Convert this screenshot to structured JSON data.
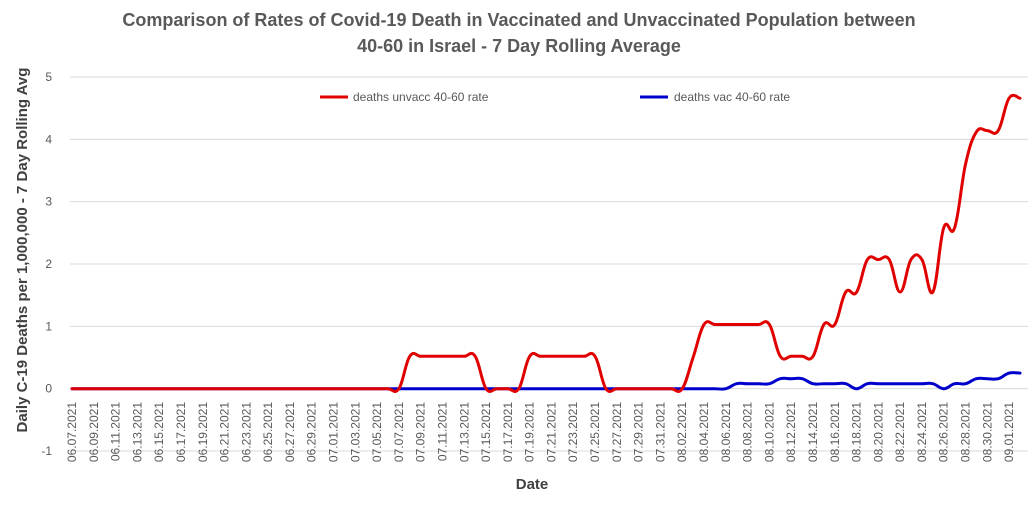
{
  "chart_data": {
    "type": "line",
    "title_lines": [
      "Comparison of Rates of Covid-19 Death in Vaccinated and Unvaccinated Population between",
      "40-60 in Israel - 7 Day Rolling Average"
    ],
    "xlabel": "Date",
    "ylabel": "Daily C-19 Deaths per 1,000,000 - 7 Day Rolling Avg",
    "ylim": [
      -1,
      5
    ],
    "yticks": [
      -1,
      0,
      1,
      2,
      3,
      4,
      5
    ],
    "grid": "horizontal",
    "legend_position": "top",
    "x": [
      "06.07.2021",
      "06.08.2021",
      "06.09.2021",
      "06.10.2021",
      "06.11.2021",
      "06.12.2021",
      "06.13.2021",
      "06.14.2021",
      "06.15.2021",
      "06.16.2021",
      "06.17.2021",
      "06.18.2021",
      "06.19.2021",
      "06.20.2021",
      "06.21.2021",
      "06.22.2021",
      "06.23.2021",
      "06.24.2021",
      "06.25.2021",
      "06.26.2021",
      "06.27.2021",
      "06.28.2021",
      "06.29.2021",
      "06.30.2021",
      "07.01.2021",
      "07.02.2021",
      "07.03.2021",
      "07.04.2021",
      "07.05.2021",
      "07.06.2021",
      "07.07.2021",
      "07.08.2021",
      "07.09.2021",
      "07.10.2021",
      "07.11.2021",
      "07.12.2021",
      "07.13.2021",
      "07.14.2021",
      "07.15.2021",
      "07.16.2021",
      "07.17.2021",
      "07.18.2021",
      "07.19.2021",
      "07.20.2021",
      "07.21.2021",
      "07.22.2021",
      "07.23.2021",
      "07.24.2021",
      "07.25.2021",
      "07.26.2021",
      "07.27.2021",
      "07.28.2021",
      "07.29.2021",
      "07.30.2021",
      "07.31.2021",
      "08.01.2021",
      "08.02.2021",
      "08.03.2021",
      "08.04.2021",
      "08.05.2021",
      "08.06.2021",
      "08.07.2021",
      "08.08.2021",
      "08.09.2021",
      "08.10.2021",
      "08.11.2021",
      "08.12.2021",
      "08.13.2021",
      "08.14.2021",
      "08.15.2021",
      "08.16.2021",
      "08.17.2021",
      "08.18.2021",
      "08.19.2021",
      "08.20.2021",
      "08.21.2021",
      "08.22.2021",
      "08.23.2021",
      "08.24.2021",
      "08.25.2021",
      "08.26.2021",
      "08.27.2021",
      "08.28.2021",
      "08.29.2021",
      "08.30.2021",
      "08.31.2021",
      "09.01.2021",
      "09.02.2021"
    ],
    "x_tick_labels": [
      "06.07.2021",
      "06.09.2021",
      "06.11.2021",
      "06.13.2021",
      "06.15.2021",
      "06.17.2021",
      "06.19.2021",
      "06.21.2021",
      "06.23.2021",
      "06.25.2021",
      "06.27.2021",
      "06.29.2021",
      "07.01.2021",
      "07.03.2021",
      "07.05.2021",
      "07.07.2021",
      "07.09.2021",
      "07.11.2021",
      "07.13.2021",
      "07.15.2021",
      "07.17.2021",
      "07.19.2021",
      "07.21.2021",
      "07.23.2021",
      "07.25.2021",
      "07.27.2021",
      "07.29.2021",
      "07.31.2021",
      "08.02.2021",
      "08.04.2021",
      "08.06.2021",
      "08.08.2021",
      "08.10.2021",
      "08.12.2021",
      "08.14.2021",
      "08.16.2021",
      "08.18.2021",
      "08.20.2021",
      "08.22.2021",
      "08.24.2021",
      "08.26.2021",
      "08.28.2021",
      "08.30.2021",
      "09.01.2021"
    ],
    "series": [
      {
        "name": "deaths unvacc 40-60 rate",
        "color": "#e00000",
        "values": [
          0,
          0,
          0,
          0,
          0,
          0,
          0,
          0,
          0,
          0,
          0,
          0,
          0,
          0,
          0,
          0,
          0,
          0,
          0,
          0,
          0,
          0,
          0,
          0,
          0,
          0,
          0,
          0,
          0,
          0,
          0,
          0.52,
          0.52,
          0.52,
          0.52,
          0.52,
          0.52,
          0.52,
          0,
          0,
          0,
          0,
          0.52,
          0.52,
          0.52,
          0.52,
          0.52,
          0.52,
          0.52,
          0,
          0,
          0,
          0,
          0,
          0,
          0,
          0,
          0.5,
          1.03,
          1.03,
          1.03,
          1.03,
          1.03,
          1.03,
          1.03,
          0.52,
          0.52,
          0.52,
          0.52,
          1.03,
          1.03,
          1.55,
          1.55,
          2.07,
          2.07,
          2.07,
          1.55,
          2.07,
          2.07,
          1.55,
          2.58,
          2.58,
          3.6,
          4.12,
          4.14,
          4.14,
          4.66,
          4.66
        ]
      },
      {
        "name": "deaths vac 40-60 rate",
        "color": "#0000cc",
        "values": [
          0,
          0,
          0,
          0,
          0,
          0,
          0,
          0,
          0,
          0,
          0,
          0,
          0,
          0,
          0,
          0,
          0,
          0,
          0,
          0,
          0,
          0,
          0,
          0,
          0,
          0,
          0,
          0,
          0,
          0,
          0,
          0,
          0,
          0,
          0,
          0,
          0,
          0,
          0,
          0,
          0,
          0,
          0,
          0,
          0,
          0,
          0,
          0,
          0,
          0,
          0,
          0,
          0,
          0,
          0,
          0,
          0,
          0,
          0,
          0,
          0,
          0.08,
          0.08,
          0.08,
          0.08,
          0.16,
          0.16,
          0.16,
          0.08,
          0.08,
          0.08,
          0.08,
          0,
          0.08,
          0.08,
          0.08,
          0.08,
          0.08,
          0.08,
          0.08,
          0,
          0.08,
          0.08,
          0.16,
          0.16,
          0.16,
          0.25,
          0.25
        ]
      }
    ]
  }
}
